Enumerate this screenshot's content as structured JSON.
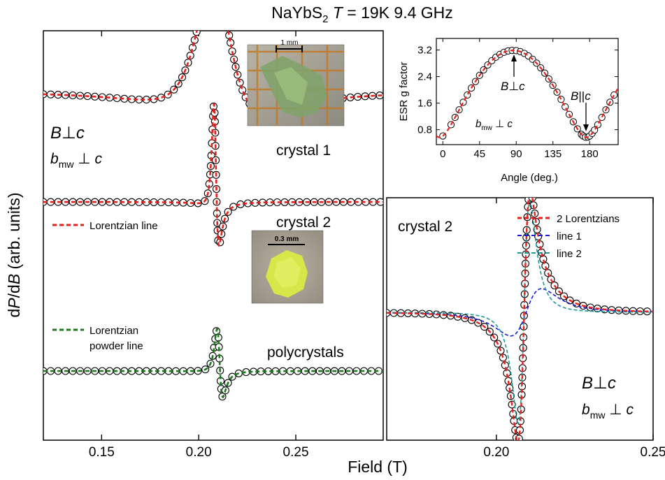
{
  "figure": {
    "title_main": "NaYbS",
    "title_sub": "2",
    "title_T": "T",
    "title_rest": " = 19K  9.4 GHz",
    "xlabel": "Field (T)",
    "ylabel_d1": "d",
    "ylabel_P": "P",
    "ylabel_d2": "/d",
    "ylabel_B": "B",
    "ylabel_rest": " (arb. units)"
  },
  "labels": {
    "left_orient_B": "B",
    "left_orient_perp": "⊥",
    "left_orient_c": "c",
    "left_mw_b": "b",
    "left_mw_sub": "mw",
    "left_mw_perp": " ⊥ ",
    "left_mw_c": "c",
    "crystal1": "crystal 1",
    "crystal2": "crystal 2",
    "polycrystals": "polycrystals",
    "lorentzian_line": "Lorentzian line",
    "lorentzian_powder_1": "Lorentzian",
    "lorentzian_powder_2": "powder line",
    "scale1": "1 mm",
    "scale2": "0.3 mm",
    "right_crystal2": "crystal 2",
    "right_orient_B": "B",
    "right_orient_perp": "⊥",
    "right_orient_c": "c",
    "right_mw_b": "b",
    "right_mw_sub": "mw",
    "right_mw_perp": " ⊥ ",
    "right_mw_c": "c",
    "inset_ylabel": "ESR g factor",
    "inset_xlabel": "Angle (deg.)",
    "inset_Bperp_B": "B",
    "inset_Bperp_perp": "⊥",
    "inset_Bperp_c": "c",
    "inset_Bpar_B": "B",
    "inset_Bpar_par": "||",
    "inset_Bpar_c": "c",
    "inset_mw_b": "b",
    "inset_mw_sub": "mw",
    "inset_mw_perp": " ⊥ ",
    "inset_mw_c": "c"
  },
  "chart_data": [
    {
      "type": "line",
      "panel": "left",
      "xlim": [
        0.12,
        0.295
      ],
      "xticks": [
        "0.15",
        "0.20",
        "0.25"
      ],
      "xtick_values": [
        0.15,
        0.2,
        0.25
      ],
      "series": [
        {
          "id": "crystal1",
          "label": "crystal 1",
          "model": "lorentzian line",
          "B0": 0.209,
          "half_width": 0.0175,
          "dispersion_mix": 0.8,
          "amplitude_arb": 1.0,
          "baseline_arb": 2.0,
          "color": "#e8201c"
        },
        {
          "id": "crystal2",
          "label": "crystal 2",
          "model": "lorentzian line",
          "B0": 0.2085,
          "half_width": 0.0021,
          "dispersion_mix": 0.45,
          "amplitude_arb": 1.0,
          "baseline_arb": 1.0,
          "color": "#e8201c"
        },
        {
          "id": "polycrystals",
          "label": "polycrystals",
          "model": "lorentzian powder line",
          "B0": 0.2105,
          "half_width": 0.0025,
          "dispersion_mix": 0.3,
          "amplitude_arb": 1.0,
          "baseline_arb": 0.0,
          "color": "#1a7a1a"
        }
      ],
      "legend": [
        {
          "label": "Lorentzian line",
          "color": "#e8201c",
          "style": "dashed"
        },
        {
          "label": "Lorentzian powder line",
          "color": "#1a7a1a",
          "style": "dashed"
        }
      ]
    },
    {
      "type": "line",
      "panel": "right",
      "xlim": [
        0.165,
        0.25
      ],
      "xticks": [
        "0.20",
        "0.25"
      ],
      "xtick_values": [
        0.2,
        0.25
      ],
      "series": [
        {
          "name": "2 Lorentzians",
          "color": "#e8201c",
          "style": "dashed"
        },
        {
          "name": "line 1",
          "color": "#1a1adc",
          "style": "dashed",
          "B0": 0.2095,
          "half_width": 0.0085,
          "amplitude_arb": 0.17
        },
        {
          "name": "line 2",
          "color": "#1a9a9a",
          "style": "dashed",
          "B0": 0.2088,
          "half_width": 0.0032,
          "amplitude_arb": 1.0
        }
      ],
      "legend": [
        "2 Lorentzians",
        "line 1",
        "line 2"
      ],
      "legend_position": "top-right"
    },
    {
      "type": "scatter",
      "panel": "inset",
      "xlabel": "Angle (deg.)",
      "ylabel": "ESR g factor",
      "xlim": [
        -8,
        215
      ],
      "ylim": [
        0.35,
        3.55
      ],
      "xticks": [
        0,
        45,
        90,
        135,
        180
      ],
      "yticks": [
        0.8,
        1.6,
        2.4,
        3.2
      ],
      "model": "g(θ) = sqrt(g_perp² sin²(θ−θ0) + g_par² cos²(θ−θ0))",
      "g_perp": 3.19,
      "g_par": 0.57,
      "theta0": -4,
      "angles": [
        0,
        10,
        15,
        20,
        25,
        30,
        35,
        40,
        45,
        50,
        55,
        60,
        65,
        70,
        75,
        80,
        85,
        90,
        95,
        100,
        105,
        110,
        115,
        120,
        125,
        130,
        135,
        140,
        145,
        150,
        155,
        160,
        165,
        170,
        172,
        175,
        178,
        180,
        183,
        186,
        190,
        195,
        200,
        205,
        210
      ],
      "annotations": [
        "B⊥c at 90",
        "B||c at 178"
      ]
    }
  ]
}
